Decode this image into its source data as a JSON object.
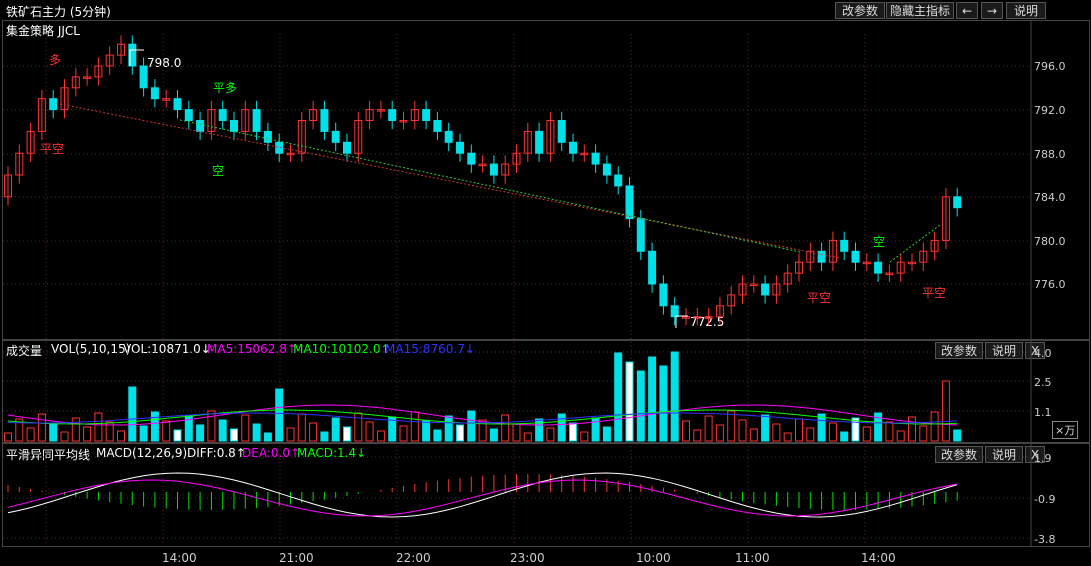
{
  "header": {
    "title": "铁矿石主力 (5分钟)",
    "strategy": "集金策略 JJCL",
    "btn_params": "改参数",
    "btn_hide": "隐藏主指标",
    "btn_left": "←",
    "btn_right": "→",
    "btn_help": "说明"
  },
  "main_chart": {
    "y_ticks": [
      "796.0",
      "792.0",
      "788.0",
      "784.0",
      "780.0",
      "776.0"
    ],
    "high_label": "798.0",
    "low_label": "772.5",
    "signals": [
      "多",
      "平空",
      "平多",
      "空",
      "平空",
      "空",
      "平空"
    ]
  },
  "volume_panel": {
    "name": "成交量",
    "params": "VOL(5,10,15)",
    "vol": "VOL:10871.0↓",
    "ma5": "MA5:15062.8↑",
    "ma10": "MA10:10102.0↑",
    "ma15": "MA15:8760.7↓",
    "btn_params": "改参数",
    "btn_help": "说明",
    "btn_close": "X",
    "y_ticks": [
      "4.0",
      "2.5",
      "1.1"
    ],
    "unit": "×万"
  },
  "macd_panel": {
    "name": "平滑异同平均线",
    "params": "MACD(12,26,9)",
    "diff": "DIFF:0.8↑",
    "dea": "DEA:0.0↑",
    "macd": "MACD:1.4↓",
    "btn_params": "改参数",
    "btn_help": "说明",
    "btn_close": "X",
    "y_ticks": [
      "1.9",
      "-0.9",
      "-3.8"
    ]
  },
  "x_axis": [
    "14:00",
    "21:00",
    "22:00",
    "23:00",
    "10:00",
    "11:00",
    "14:00"
  ],
  "colors": {
    "up": "#ff3232",
    "down": "#00e0e8",
    "ma5": "#ff00ff",
    "ma10": "#00ff00",
    "ma15": "#3232ff",
    "grid": "#7a1f1f"
  }
}
